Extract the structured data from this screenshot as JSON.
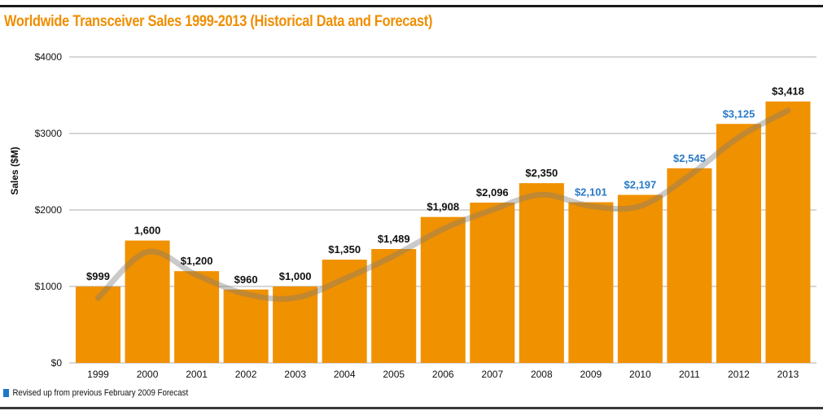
{
  "page": {
    "title": "Worldwide Transceiver Sales 1999-2013 (Historical Data and Forecast)"
  },
  "colors": {
    "title": "#ef8e00",
    "bar": "#f09100",
    "label_normal": "#111111",
    "label_revised": "#2a7ac7",
    "grid": "#c8c8c8",
    "trend": "#7a7a7a"
  },
  "legend": {
    "swatch_color": "#1f77c9",
    "label": "Revised up from previous February 2009 Forecast"
  },
  "chart_data": {
    "type": "bar",
    "title": "Worldwide Transceiver Sales 1999-2013 (Historical Data and Forecast)",
    "xlabel": "",
    "ylabel": "Sales ($M)",
    "ylim": [
      0,
      4000
    ],
    "yticks": [
      0,
      1000,
      2000,
      3000,
      4000
    ],
    "ytick_labels": [
      "$0",
      "$1000",
      "$2000",
      "$3000",
      "$4000"
    ],
    "grid": true,
    "legend_position": "bottom-left",
    "categories": [
      "1999",
      "2000",
      "2001",
      "2002",
      "2003",
      "2004",
      "2005",
      "2006",
      "2007",
      "2008",
      "2009",
      "2010",
      "2011",
      "2012",
      "2013"
    ],
    "values": [
      999,
      1600,
      1200,
      960,
      1000,
      1350,
      1489,
      1908,
      2096,
      2350,
      2101,
      2197,
      2545,
      3125,
      3418
    ],
    "data_labels": [
      "$999",
      "1,600",
      "$1,200",
      "$960",
      "$1,000",
      "$1,350",
      "$1,489",
      "$1,908",
      "$2,096",
      "$2,350",
      "$2,101",
      "$2,197",
      "$2,545",
      "$3,125",
      "$3,418"
    ],
    "revised_up": [
      false,
      false,
      false,
      false,
      false,
      false,
      false,
      false,
      false,
      false,
      true,
      true,
      true,
      true,
      false
    ],
    "trendline": {
      "type": "smoothed",
      "description": "translucent gray smoothed trend curve over bars",
      "approx_values": [
        850,
        1450,
        1150,
        900,
        850,
        1100,
        1400,
        1750,
        2000,
        2200,
        2050,
        2050,
        2450,
        2950,
        3300
      ]
    }
  }
}
